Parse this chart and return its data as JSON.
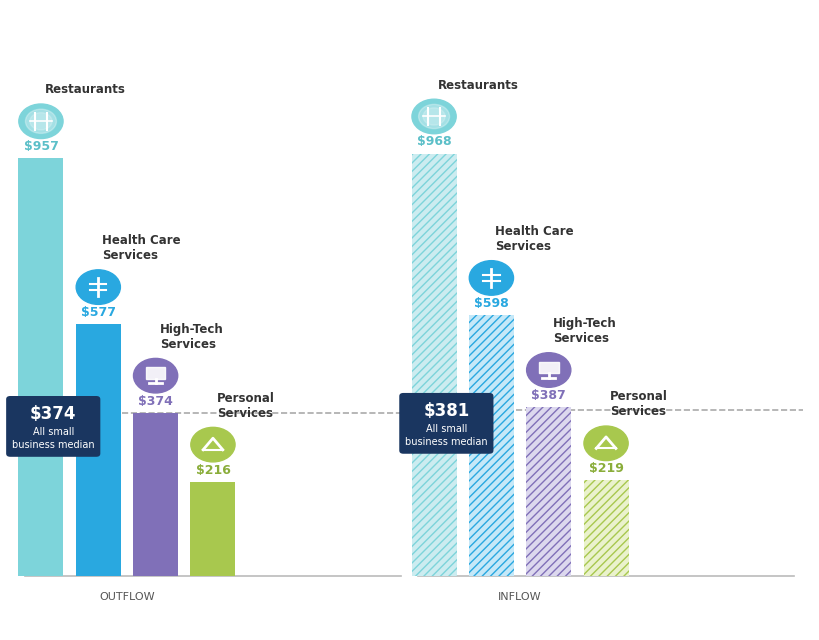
{
  "outflow": {
    "categories": [
      "Restaurants",
      "Health Care\nServices",
      "High-Tech\nServices",
      "Personal\nServices"
    ],
    "values": [
      957,
      577,
      374,
      216
    ],
    "labels": [
      "$957",
      "$577",
      "$374",
      "$216"
    ],
    "bar_colors": [
      "#7dd4da",
      "#29a8e0",
      "#8070b8",
      "#a8c84e"
    ],
    "value_colors": [
      "#5bbfc8",
      "#29a8e0",
      "#8070b8",
      "#8aad3a"
    ],
    "icon_colors": [
      "#7dd4da",
      "#29a8e0",
      "#8070b8",
      "#a8c84e"
    ],
    "median_value": 374,
    "median_label_top": "$374",
    "median_label_bot": "All small\nbusiness median"
  },
  "inflow": {
    "categories": [
      "Restaurants",
      "Health Care\nServices",
      "High-Tech\nServices",
      "Personal\nServices"
    ],
    "values": [
      968,
      598,
      387,
      219
    ],
    "labels": [
      "$968",
      "$598",
      "$387",
      "$219"
    ],
    "bar_colors": [
      "#7dd4da",
      "#29a8e0",
      "#8070b8",
      "#a8c84e"
    ],
    "value_colors": [
      "#5bbfc8",
      "#29a8e0",
      "#8070b8",
      "#8aad3a"
    ],
    "icon_colors": [
      "#7dd4da",
      "#29a8e0",
      "#8070b8",
      "#a8c84e"
    ],
    "median_value": 381,
    "median_label_top": "$381",
    "median_label_bot": "All small\nbusiness median"
  },
  "background_color": "#ffffff",
  "outflow_label": "OUTFLOW",
  "inflow_label": "INFLOW",
  "bar_width": 0.7,
  "ylim": [
    0,
    1200
  ],
  "median_color": "#1a3660",
  "median_text_color": "#ffffff",
  "hatch_face_colors": [
    "#ccecf0",
    "#c5e8f8",
    "#dcd8ee",
    "#eaf2cc"
  ],
  "hatch_edge_colors": [
    "#7dd4da",
    "#29a8e0",
    "#8070b8",
    "#a8c84e"
  ]
}
